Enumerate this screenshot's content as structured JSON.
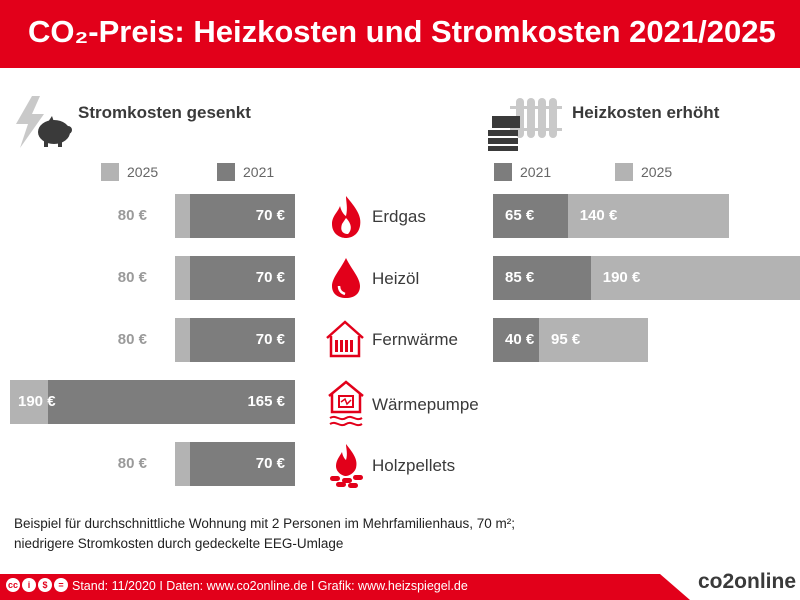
{
  "header": {
    "title": "CO₂-Preis: Heizkosten und Stromkosten 2021/2025"
  },
  "sections": {
    "left_title": "Stromkosten gesenkt",
    "right_title": "Heizkosten erhöht"
  },
  "legend": {
    "left": [
      "2025",
      "2021"
    ],
    "right": [
      "2021",
      "2025"
    ]
  },
  "colors": {
    "brand_red": "#e2001a",
    "dark_gray": "#7d7d7d",
    "light_gray": "#b3b3b3"
  },
  "chart_data": [
    {
      "type": "bar",
      "title": "Stromkosten gesenkt",
      "categories": [
        "Erdgas",
        "Heizöl",
        "Fernwärme",
        "Wärmepumpe",
        "Holzpellets"
      ],
      "series": [
        {
          "name": "2025",
          "values": [
            80,
            80,
            80,
            190,
            80
          ],
          "labels": [
            "80 €",
            "80 €",
            "80 €",
            "190 €",
            "80 €"
          ]
        },
        {
          "name": "2021",
          "values": [
            70,
            70,
            70,
            165,
            70
          ],
          "labels": [
            "70 €",
            "70 €",
            "70 €",
            "165 €",
            "70 €"
          ]
        }
      ]
    },
    {
      "type": "bar",
      "title": "Heizkosten erhöht",
      "categories": [
        "Erdgas",
        "Heizöl",
        "Fernwärme"
      ],
      "series": [
        {
          "name": "2021",
          "values": [
            65,
            85,
            40
          ],
          "labels": [
            "65 €",
            "85 €",
            "40 €"
          ]
        },
        {
          "name": "2025",
          "values": [
            140,
            190,
            95
          ],
          "labels": [
            "140 €",
            "190 €",
            "95 €"
          ]
        }
      ]
    }
  ],
  "footnote": {
    "line1": "Beispiel für durchschnittliche Wohnung mit 2 Personen im Mehrfamilienhaus, 70 m²;",
    "line2": "niedrigere Stromkosten durch gedeckelte EEG-Umlage"
  },
  "footer": {
    "text": "Stand: 11/2020   I   Daten: www.co2online.de   I   Grafik: www.heizspiegel.de",
    "brand": "co2online",
    "license_icons": [
      "cc",
      "i",
      "$",
      "="
    ]
  }
}
